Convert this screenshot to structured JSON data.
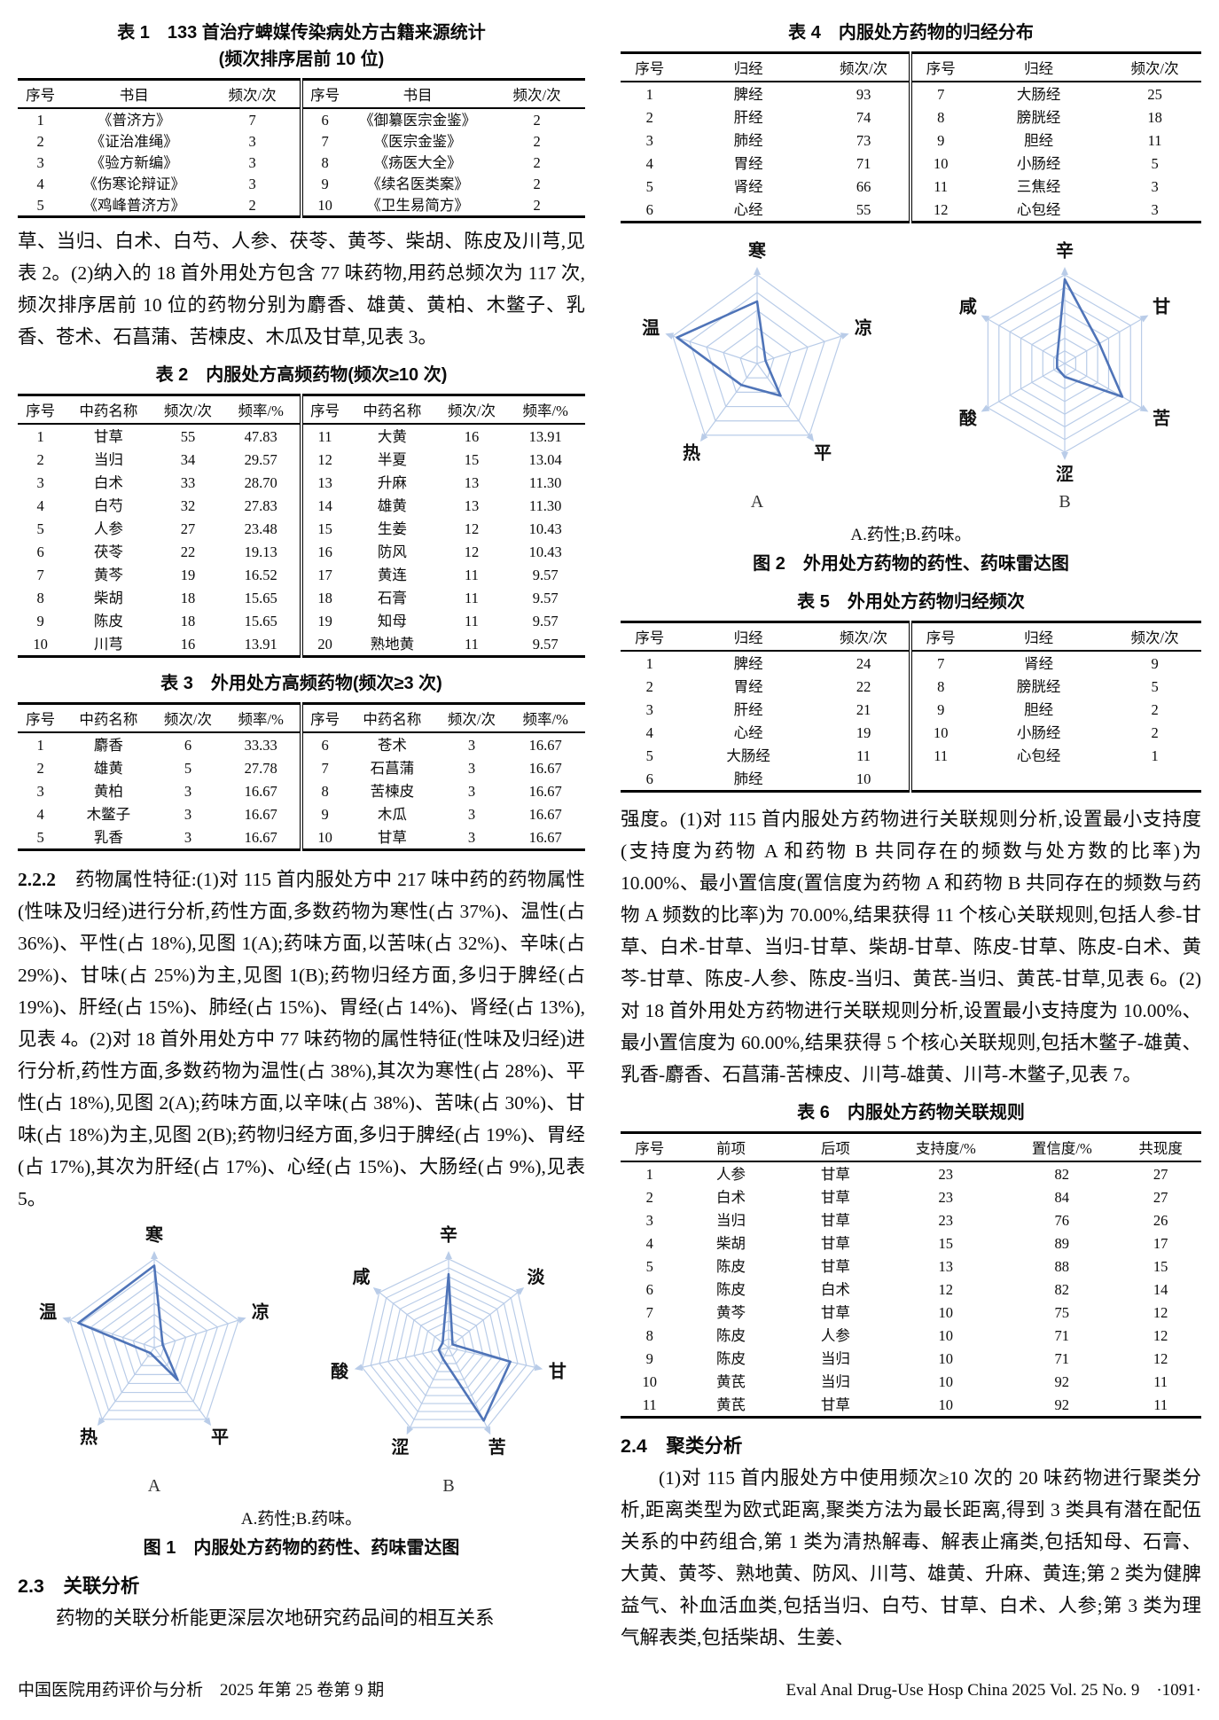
{
  "colors": {
    "radar_grid": "#b9cce8",
    "radar_data": "#4f74b8"
  },
  "left": {
    "table1": {
      "title_line1": "表 1　133 首治疗蜱媒传染病处方古籍来源统计",
      "title_line2": "(频次排序居前 10 位)",
      "headers": [
        "序号",
        "书目",
        "频次/次",
        "序号",
        "书目",
        "频次/次"
      ],
      "rows": [
        [
          "1",
          "《普济方》",
          "7",
          "6",
          "《御纂医宗金鉴》",
          "2"
        ],
        [
          "2",
          "《证治准绳》",
          "3",
          "7",
          "《医宗金鉴》",
          "2"
        ],
        [
          "3",
          "《验方新编》",
          "3",
          "8",
          "《疡医大全》",
          "2"
        ],
        [
          "4",
          "《伤寒论辩证》",
          "3",
          "9",
          "《续名医类案》",
          "2"
        ],
        [
          "5",
          "《鸡峰普济方》",
          "2",
          "10",
          "《卫生易简方》",
          "2"
        ]
      ]
    },
    "para_intro": "草、当归、白术、白芍、人参、茯苓、黄芩、柴胡、陈皮及川芎,见表 2。(2)纳入的 18 首外用处方包含 77 味药物,用药总频次为 117 次,频次排序居前 10 位的药物分别为麝香、雄黄、黄柏、木鳖子、乳香、苍术、石菖蒲、苦楝皮、木瓜及甘草,见表 3。",
    "table2": {
      "title": "表 2　内服处方高频药物(频次≥10 次)",
      "headers": [
        "序号",
        "中药名称",
        "频次/次",
        "频率/%",
        "序号",
        "中药名称",
        "频次/次",
        "频率/%"
      ],
      "rows": [
        [
          "1",
          "甘草",
          "55",
          "47.83",
          "11",
          "大黄",
          "16",
          "13.91"
        ],
        [
          "2",
          "当归",
          "34",
          "29.57",
          "12",
          "半夏",
          "15",
          "13.04"
        ],
        [
          "3",
          "白术",
          "33",
          "28.70",
          "13",
          "升麻",
          "13",
          "11.30"
        ],
        [
          "4",
          "白芍",
          "32",
          "27.83",
          "14",
          "雄黄",
          "13",
          "11.30"
        ],
        [
          "5",
          "人参",
          "27",
          "23.48",
          "15",
          "生姜",
          "12",
          "10.43"
        ],
        [
          "6",
          "茯苓",
          "22",
          "19.13",
          "16",
          "防风",
          "12",
          "10.43"
        ],
        [
          "7",
          "黄芩",
          "19",
          "16.52",
          "17",
          "黄连",
          "11",
          "9.57"
        ],
        [
          "8",
          "柴胡",
          "18",
          "15.65",
          "18",
          "石膏",
          "11",
          "9.57"
        ],
        [
          "9",
          "陈皮",
          "18",
          "15.65",
          "19",
          "知母",
          "11",
          "9.57"
        ],
        [
          "10",
          "川芎",
          "16",
          "13.91",
          "20",
          "熟地黄",
          "11",
          "9.57"
        ]
      ]
    },
    "table3": {
      "title": "表 3　外用处方高频药物(频次≥3 次)",
      "headers": [
        "序号",
        "中药名称",
        "频次/次",
        "频率/%",
        "序号",
        "中药名称",
        "频次/次",
        "频率/%"
      ],
      "rows": [
        [
          "1",
          "麝香",
          "6",
          "33.33",
          "6",
          "苍术",
          "3",
          "16.67"
        ],
        [
          "2",
          "雄黄",
          "5",
          "27.78",
          "7",
          "石菖蒲",
          "3",
          "16.67"
        ],
        [
          "3",
          "黄柏",
          "3",
          "16.67",
          "8",
          "苦楝皮",
          "3",
          "16.67"
        ],
        [
          "4",
          "木鳖子",
          "3",
          "16.67",
          "9",
          "木瓜",
          "3",
          "16.67"
        ],
        [
          "5",
          "乳香",
          "3",
          "16.67",
          "10",
          "甘草",
          "3",
          "16.67"
        ]
      ]
    },
    "section_222": {
      "num": "2.2.2",
      "text": "　药物属性特征:(1)对 115 首内服处方中 217 味中药的药物属性(性味及归经)进行分析,药性方面,多数药物为寒性(占 37%)、温性(占 36%)、平性(占 18%),见图 1(A);药味方面,以苦味(占 32%)、辛味(占 29%)、甘味(占 25%)为主,见图 1(B);药物归经方面,多归于脾经(占 19%)、肝经(占 15%)、肺经(占 15%)、胃经(占 14%)、肾经(占 13%),见表 4。(2)对 18 首外用处方中 77 味药物的属性特征(性味及归经)进行分析,药性方面,多数药物为温性(占 38%),其次为寒性(占 28%)、平性(占 18%),见图 2(A);药味方面,以辛味(占 38%)、苦味(占 30%)、甘味(占 18%)为主,见图 2(B);药物归经方面,多归于脾经(占 19%)、胃经(占 17%),其次为肝经(占 17%)、心经(占 15%)、大肠经(占 9%),见表 5。"
    },
    "fig1": {
      "sub_a": "A",
      "sub_b": "B",
      "note": "A.药性;B.药味。",
      "caption": "图 1　内服处方药物的药性、药味雷达图"
    },
    "section_23": {
      "head": "2.3　关联分析",
      "text": "药物的关联分析能更深层次地研究药品间的相互关系"
    },
    "footer": "中国医院用药评价与分析　2025 年第 25 卷第 9 期"
  },
  "right": {
    "table4": {
      "title": "表 4　内服处方药物的归经分布",
      "headers": [
        "序号",
        "归经",
        "频次/次",
        "序号",
        "归经",
        "频次/次"
      ],
      "rows": [
        [
          "1",
          "脾经",
          "93",
          "7",
          "大肠经",
          "25"
        ],
        [
          "2",
          "肝经",
          "74",
          "8",
          "膀胱经",
          "18"
        ],
        [
          "3",
          "肺经",
          "73",
          "9",
          "胆经",
          "11"
        ],
        [
          "4",
          "胃经",
          "71",
          "10",
          "小肠经",
          "5"
        ],
        [
          "5",
          "肾经",
          "66",
          "11",
          "三焦经",
          "3"
        ],
        [
          "6",
          "心经",
          "55",
          "12",
          "心包经",
          "3"
        ]
      ]
    },
    "fig2": {
      "sub_a": "A",
      "sub_b": "B",
      "note": "A.药性;B.药味。",
      "caption": "图 2　外用处方药物的药性、药味雷达图"
    },
    "table5": {
      "title": "表 5　外用处方药物归经频次",
      "headers": [
        "序号",
        "归经",
        "频次/次",
        "序号",
        "归经",
        "频次/次"
      ],
      "rows": [
        [
          "1",
          "脾经",
          "24",
          "7",
          "肾经",
          "9"
        ],
        [
          "2",
          "胃经",
          "22",
          "8",
          "膀胱经",
          "5"
        ],
        [
          "3",
          "肝经",
          "21",
          "9",
          "胆经",
          "2"
        ],
        [
          "4",
          "心经",
          "19",
          "10",
          "小肠经",
          "2"
        ],
        [
          "5",
          "大肠经",
          "11",
          "11",
          "心包经",
          "1"
        ],
        [
          "6",
          "肺经",
          "10",
          "",
          "",
          ""
        ]
      ]
    },
    "para_assoc": "强度。(1)对 115 首内服处方药物进行关联规则分析,设置最小支持度(支持度为药物 A 和药物 B 共同存在的频数与处方数的比率)为 10.00%、最小置信度(置信度为药物 A 和药物 B 共同存在的频数与药物 A 频数的比率)为 70.00%,结果获得 11 个核心关联规则,包括人参-甘草、白术-甘草、当归-甘草、柴胡-甘草、陈皮-甘草、陈皮-白术、黄芩-甘草、陈皮-人参、陈皮-当归、黄芪-当归、黄芪-甘草,见表 6。(2)对 18 首外用处方药物进行关联规则分析,设置最小支持度为 10.00%、最小置信度为 60.00%,结果获得 5 个核心关联规则,包括木鳖子-雄黄、乳香-麝香、石菖蒲-苦楝皮、川芎-雄黄、川芎-木鳖子,见表 7。",
    "table6": {
      "title": "表 6　内服处方药物关联规则",
      "headers": [
        "序号",
        "前项",
        "后项",
        "支持度/%",
        "置信度/%",
        "共现度"
      ],
      "rows": [
        [
          "1",
          "人参",
          "甘草",
          "23",
          "82",
          "27"
        ],
        [
          "2",
          "白术",
          "甘草",
          "23",
          "84",
          "27"
        ],
        [
          "3",
          "当归",
          "甘草",
          "23",
          "76",
          "26"
        ],
        [
          "4",
          "柴胡",
          "甘草",
          "15",
          "89",
          "17"
        ],
        [
          "5",
          "陈皮",
          "甘草",
          "13",
          "88",
          "15"
        ],
        [
          "6",
          "陈皮",
          "白术",
          "12",
          "82",
          "14"
        ],
        [
          "7",
          "黄芩",
          "甘草",
          "10",
          "75",
          "12"
        ],
        [
          "8",
          "陈皮",
          "人参",
          "10",
          "71",
          "12"
        ],
        [
          "9",
          "陈皮",
          "当归",
          "10",
          "71",
          "12"
        ],
        [
          "10",
          "黄芪",
          "当归",
          "10",
          "92",
          "11"
        ],
        [
          "11",
          "黄芪",
          "甘草",
          "10",
          "92",
          "11"
        ]
      ]
    },
    "section_24": {
      "head": "2.4　聚类分析",
      "text": "(1)对 115 首内服处方中使用频次≥10 次的 20 味药物进行聚类分析,距离类型为欧式距离,聚类方法为最长距离,得到 3 类具有潜在配伍关系的中药组合,第 1 类为清热解毒、解表止痛类,包括知母、石膏、大黄、黄芩、熟地黄、防风、川芎、雄黄、升麻、黄连;第 2 类为健脾益气、补血活血类,包括当归、白芍、甘草、白术、人参;第 3 类为理气解表类,包括柴胡、生姜、"
    },
    "footer": "Eval Anal Drug-Use Hosp China 2025 Vol. 25 No. 9　·1091·"
  },
  "chart_data": [
    {
      "type": "radar",
      "figure": "图1",
      "panel": "A",
      "title": "内服处方药物药性占比/%",
      "axes": [
        "寒",
        "凉",
        "平",
        "热",
        "温"
      ],
      "values": [
        37,
        4,
        18,
        3,
        36
      ],
      "max": 40,
      "rings": 8,
      "legend_position": "none",
      "grid": true
    },
    {
      "type": "radar",
      "figure": "图1",
      "panel": "B",
      "title": "内服处方药物药味占比/%",
      "axes": [
        "辛",
        "淡",
        "甘",
        "苦",
        "涩",
        "酸",
        "咸"
      ],
      "values": [
        29,
        2,
        25,
        32,
        5,
        4,
        3
      ],
      "max": 35,
      "rings": 10,
      "legend_position": "none",
      "grid": true
    },
    {
      "type": "radar",
      "figure": "图2",
      "panel": "A",
      "title": "外用处方药物药性占比/%",
      "axes": [
        "寒",
        "凉",
        "平",
        "热",
        "温"
      ],
      "values": [
        28,
        4,
        18,
        12,
        38
      ],
      "max": 40,
      "rings": 5,
      "legend_position": "none",
      "grid": true
    },
    {
      "type": "radar",
      "figure": "图2",
      "panel": "B",
      "title": "外用处方药物药味占比/%",
      "axes": [
        "辛",
        "甘",
        "苦",
        "涩",
        "酸",
        "咸"
      ],
      "values": [
        38,
        18,
        30,
        6,
        4,
        4
      ],
      "max": 40,
      "rings": 7,
      "legend_position": "none",
      "grid": true
    }
  ]
}
